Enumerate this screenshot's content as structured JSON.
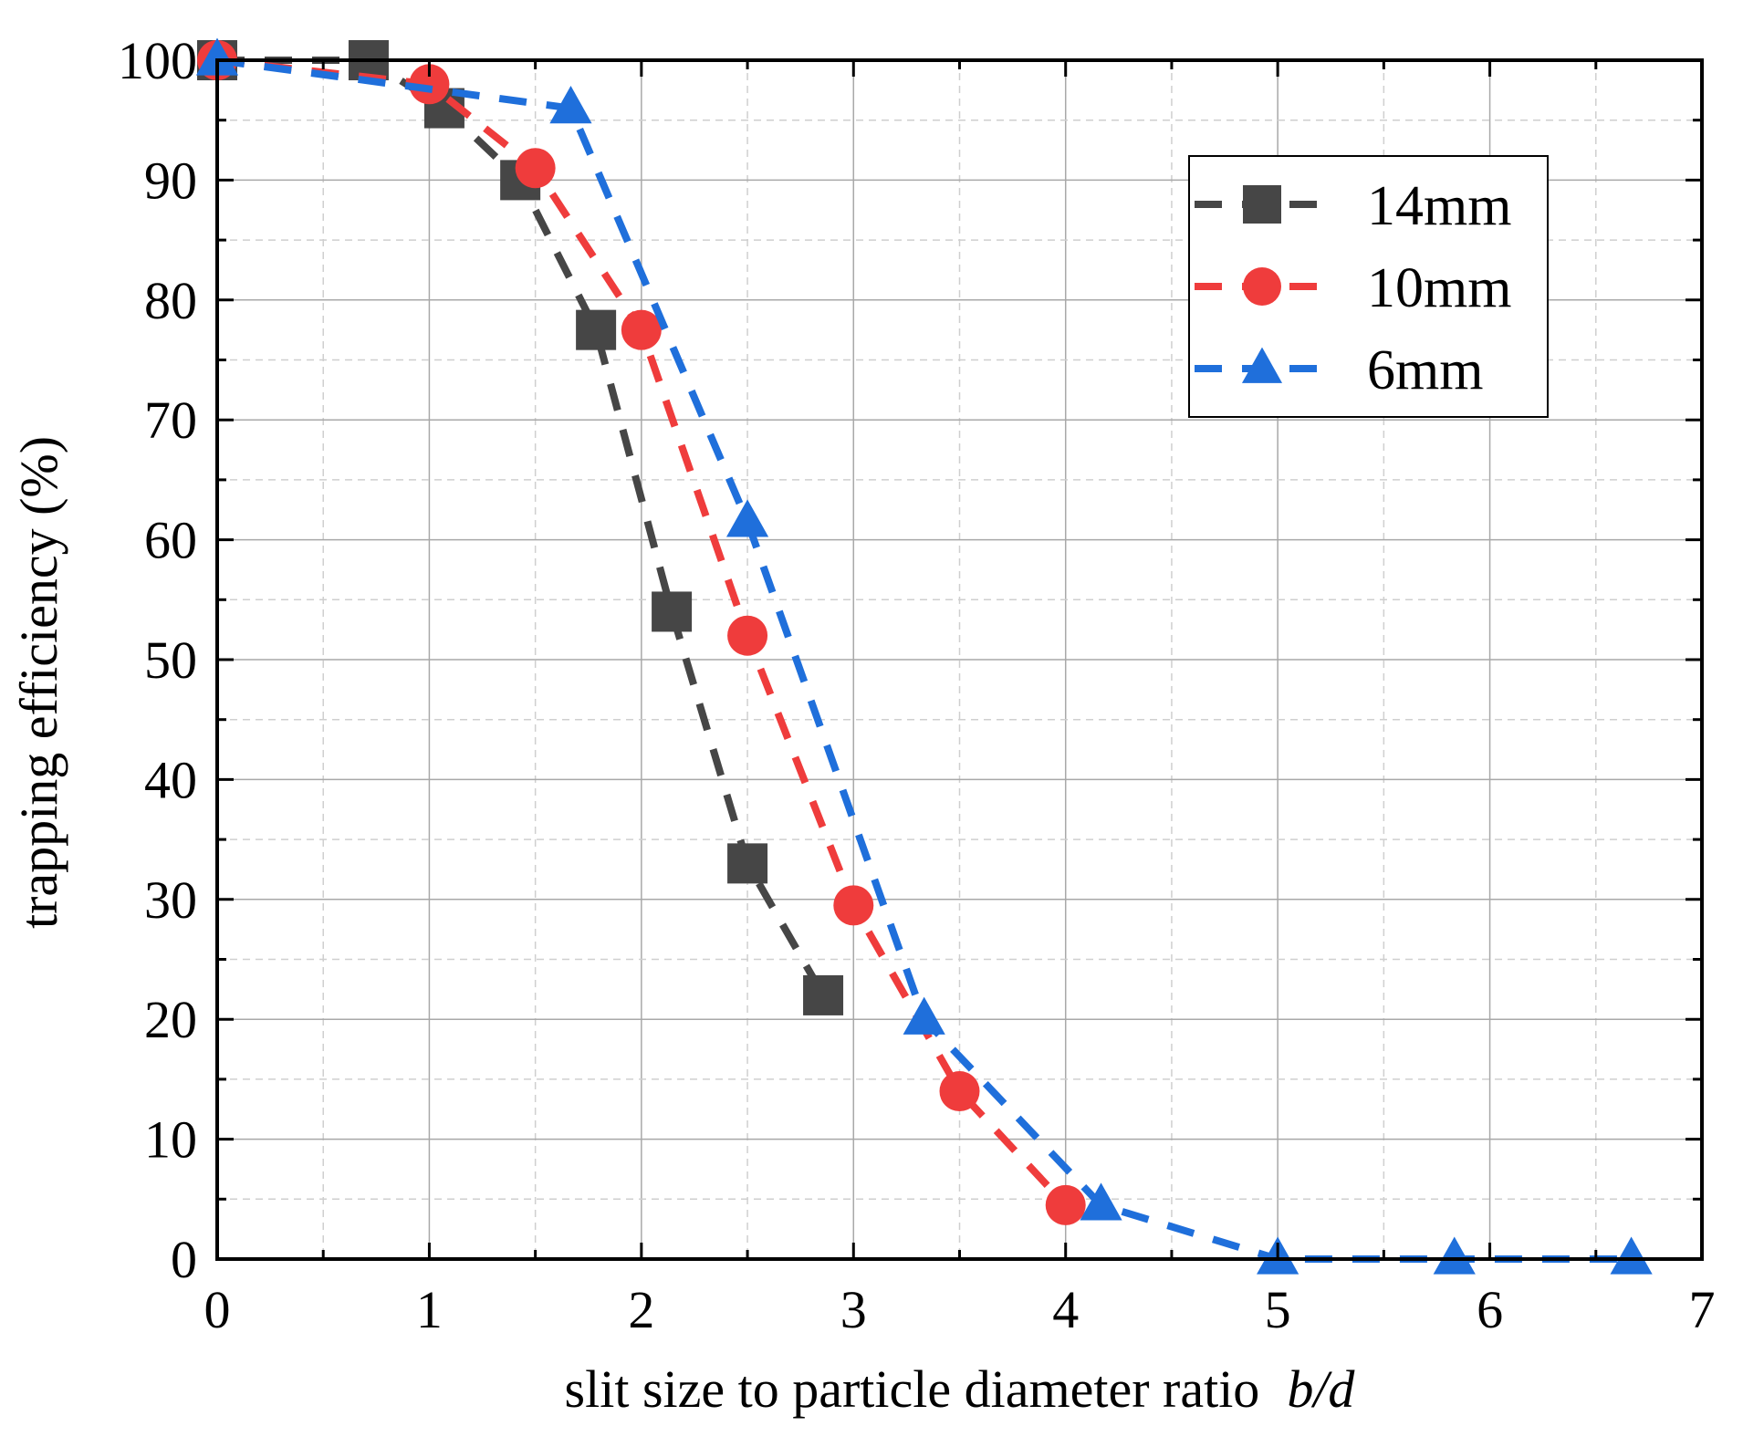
{
  "chart_data": {
    "type": "line",
    "title": "",
    "xlabel": "slit size to particle diameter ratio",
    "xlabel_symbol": "b/d",
    "ylabel": "trapping efficiency (%)",
    "xlim": [
      0,
      7
    ],
    "ylim": [
      0,
      100
    ],
    "x_ticks": [
      0,
      1,
      2,
      3,
      4,
      5,
      6,
      7
    ],
    "x_tick_labels": [
      "0",
      "1",
      "2",
      "3",
      "4",
      "5",
      "6",
      "7"
    ],
    "y_ticks": [
      0,
      10,
      20,
      30,
      40,
      50,
      60,
      70,
      80,
      90,
      100
    ],
    "y_tick_labels": [
      "0",
      "10",
      "20",
      "30",
      "40",
      "50",
      "60",
      "70",
      "80",
      "90",
      "100"
    ],
    "grid": true,
    "legend_position": "top-right",
    "series": [
      {
        "name": "14mm",
        "color": "#464646",
        "marker": "square",
        "x": [
          0,
          0.714,
          1.071,
          1.429,
          1.786,
          2.143,
          2.5,
          2.857
        ],
        "y": [
          100,
          100,
          96,
          90,
          77.5,
          54,
          33,
          22
        ]
      },
      {
        "name": "10mm",
        "color": "#ef3c3c",
        "marker": "circle",
        "x": [
          0,
          1.0,
          1.5,
          2.0,
          2.5,
          3.0,
          3.5,
          4.0
        ],
        "y": [
          100,
          98,
          91,
          77.5,
          52,
          29.5,
          14,
          4.5
        ]
      },
      {
        "name": "6mm",
        "color": "#1f6fdb",
        "marker": "triangle",
        "x": [
          0,
          1.667,
          2.5,
          3.333,
          4.167,
          5.0,
          5.833,
          6.667
        ],
        "y": [
          100,
          96,
          61.5,
          20,
          4.5,
          0,
          0,
          0
        ]
      }
    ]
  }
}
